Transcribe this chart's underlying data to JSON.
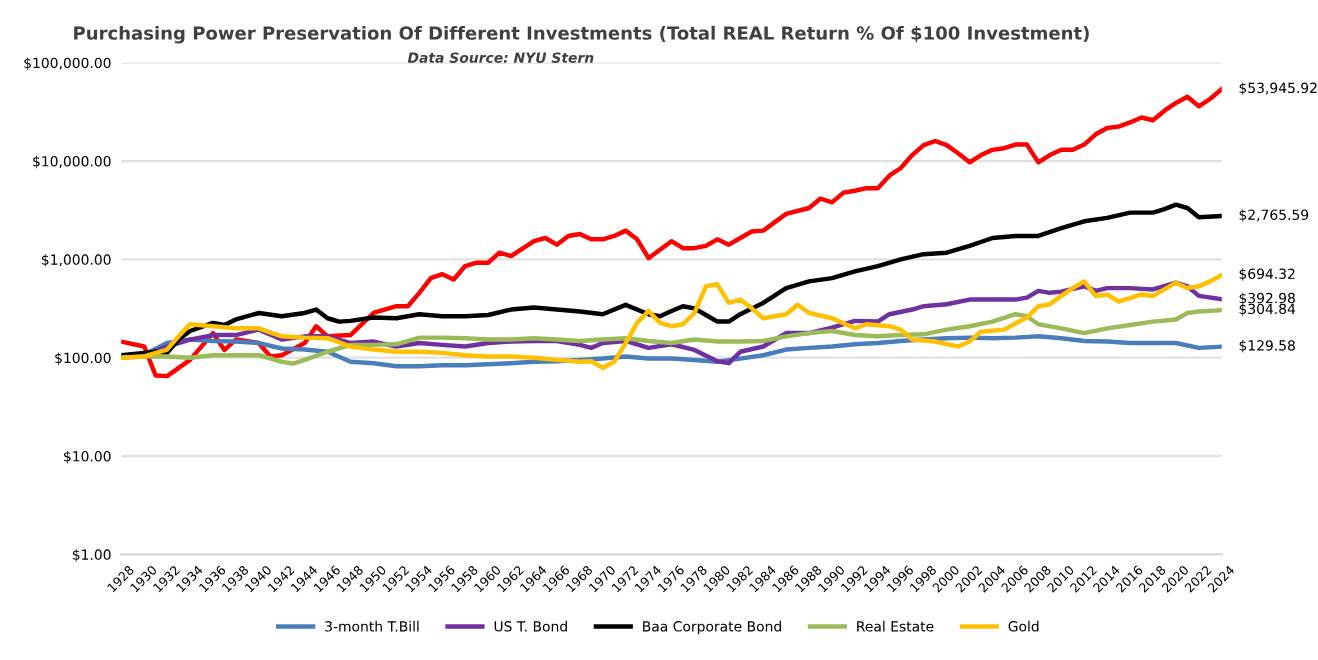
{
  "chart_data": {
    "type": "line",
    "title": "Purchasing Power Preservation Of Different Investments (Total REAL Return % Of $100 Investment)",
    "subtitle": "Data Source: NYU Stern",
    "series": [
      {
        "color": "#ff0000",
        "x": [
          1928,
          1930,
          1931,
          1932,
          1934,
          1936,
          1937,
          1938,
          1940,
          1941,
          1942,
          1944,
          1945,
          1946,
          1948,
          1950,
          1952,
          1953,
          1954,
          1955,
          1956,
          1957,
          1958,
          1959,
          1960,
          1961,
          1962,
          1964,
          1965,
          1966,
          1967,
          1968,
          1969,
          1970,
          1971,
          1972,
          1973,
          1974,
          1976,
          1977,
          1978,
          1979,
          1980,
          1981,
          1982,
          1983,
          1984,
          1986,
          1988,
          1989,
          1990,
          1991,
          1992,
          1993,
          1994,
          1995,
          1996,
          1997,
          1998,
          1999,
          2000,
          2001,
          2002,
          2003,
          2004,
          2005,
          2006,
          2007,
          2008,
          2009,
          2010,
          2011,
          2012,
          2013,
          2014,
          2015,
          2016,
          2017,
          2018,
          2019,
          2020,
          2021,
          2022,
          2023,
          2024
        ],
        "values": [
          146,
          130,
          66,
          65,
          95,
          178,
          120,
          153,
          141,
          103,
          106,
          141,
          209,
          165,
          170,
          285,
          334,
          334,
          457,
          645,
          707,
          625,
          855,
          925,
          925,
          1170,
          1080,
          1530,
          1650,
          1410,
          1730,
          1810,
          1600,
          1600,
          1730,
          1960,
          1600,
          1030,
          1530,
          1300,
          1300,
          1370,
          1600,
          1410,
          1650,
          1920,
          1960,
          2900,
          3330,
          4160,
          3800,
          4770,
          4990,
          5300,
          5300,
          7100,
          8500,
          11500,
          14500,
          16000,
          14500,
          12000,
          9700,
          11500,
          13000,
          13500,
          14700,
          14700,
          9700,
          11500,
          13000,
          13000,
          14700,
          18700,
          21700,
          22400,
          24700,
          27700,
          26000,
          32500,
          39000,
          45000,
          36000,
          43000,
          53945.92
        ],
        "value_labels": [
          null,
          null,
          null,
          null,
          null,
          null,
          null,
          null,
          null,
          null,
          null,
          null,
          null,
          null,
          null,
          null,
          null,
          null,
          null,
          null,
          null,
          null,
          null,
          null,
          null,
          null,
          null,
          null,
          null,
          null,
          null,
          null,
          null,
          null,
          null,
          null,
          null,
          null,
          null,
          null,
          null,
          null,
          null,
          null,
          null,
          null,
          null,
          null,
          null,
          null,
          null,
          null,
          null,
          null,
          null,
          null,
          null,
          null,
          null,
          null,
          null,
          null,
          null,
          null,
          null,
          null,
          null,
          null,
          null,
          null,
          null,
          null,
          null,
          null,
          null,
          null,
          null,
          null,
          null,
          null,
          null,
          null,
          null,
          null,
          "$53,945.92"
        ]
      },
      {
        "name": "3-month T.Bill",
        "color": "#4a7ebb",
        "x": [
          1928,
          1930,
          1932,
          1934,
          1936,
          1938,
          1940,
          1942,
          1944,
          1946,
          1948,
          1950,
          1952,
          1954,
          1956,
          1958,
          1960,
          1962,
          1964,
          1966,
          1968,
          1970,
          1972,
          1974,
          1976,
          1978,
          1980,
          1982,
          1984,
          1986,
          1988,
          1990,
          1992,
          1994,
          1996,
          1998,
          2000,
          2002,
          2004,
          2006,
          2008,
          2010,
          2012,
          2014,
          2016,
          2018,
          2020,
          2022,
          2024
        ],
        "values": [
          103,
          108,
          141,
          153,
          148,
          146,
          141,
          124,
          121,
          115,
          91,
          88,
          82,
          82,
          84,
          84,
          86,
          88,
          91,
          92,
          95,
          98,
          103,
          98,
          98,
          95,
          91,
          98,
          106,
          121,
          126,
          130,
          137,
          141,
          148,
          153,
          158,
          160,
          158,
          160,
          165,
          158,
          148,
          146,
          141,
          141,
          141,
          126,
          129.58
        ],
        "value_labels": [
          null,
          null,
          null,
          null,
          null,
          null,
          null,
          null,
          null,
          null,
          null,
          null,
          null,
          null,
          null,
          null,
          null,
          null,
          null,
          null,
          null,
          null,
          null,
          null,
          null,
          null,
          null,
          null,
          null,
          null,
          null,
          null,
          null,
          null,
          null,
          null,
          null,
          null,
          null,
          null,
          null,
          null,
          null,
          null,
          null,
          null,
          null,
          null,
          "$129.58"
        ]
      },
      {
        "name": "US T. Bond",
        "color": "#7030a0",
        "x": [
          1928,
          1930,
          1932,
          1934,
          1936,
          1938,
          1940,
          1942,
          1944,
          1946,
          1948,
          1950,
          1952,
          1954,
          1956,
          1958,
          1960,
          1962,
          1964,
          1966,
          1968,
          1969,
          1970,
          1972,
          1974,
          1976,
          1978,
          1980,
          1981,
          1982,
          1984,
          1986,
          1988,
          1990,
          1992,
          1994,
          1995,
          1997,
          1998,
          2000,
          2002,
          2004,
          2006,
          2007,
          2008,
          2009,
          2010,
          2012,
          2013,
          2014,
          2016,
          2018,
          2020,
          2021,
          2022,
          2024
        ],
        "values": [
          100,
          106,
          130,
          153,
          170,
          170,
          193,
          153,
          165,
          165,
          141,
          146,
          130,
          141,
          135,
          130,
          141,
          146,
          148,
          148,
          135,
          126,
          141,
          148,
          126,
          137,
          120,
          92,
          88,
          115,
          130,
          178,
          178,
          202,
          237,
          233,
          277,
          309,
          334,
          350,
          390,
          390,
          390,
          409,
          478,
          457,
          470,
          533,
          478,
          510,
          510,
          495,
          580,
          533,
          425,
          392.98
        ],
        "value_labels": [
          null,
          null,
          null,
          null,
          null,
          null,
          null,
          null,
          null,
          null,
          null,
          null,
          null,
          null,
          null,
          null,
          null,
          null,
          null,
          null,
          null,
          null,
          null,
          null,
          null,
          null,
          null,
          null,
          null,
          null,
          null,
          null,
          null,
          null,
          null,
          null,
          null,
          null,
          null,
          null,
          null,
          null,
          null,
          null,
          null,
          null,
          null,
          null,
          null,
          null,
          null,
          null,
          null,
          null,
          null,
          "$392.98"
        ]
      },
      {
        "name": "Baa Corporate Bond",
        "color": "#000000",
        "x": [
          1928,
          1930,
          1931,
          1932,
          1933,
          1934,
          1936,
          1937,
          1938,
          1940,
          1942,
          1944,
          1945,
          1946,
          1947,
          1948,
          1950,
          1952,
          1954,
          1956,
          1958,
          1960,
          1962,
          1964,
          1966,
          1968,
          1970,
          1972,
          1974,
          1975,
          1976,
          1977,
          1978,
          1979,
          1980,
          1981,
          1982,
          1984,
          1986,
          1988,
          1990,
          1992,
          1994,
          1996,
          1998,
          2000,
          2002,
          2004,
          2006,
          2008,
          2010,
          2012,
          2014,
          2016,
          2018,
          2019,
          2020,
          2021,
          2022,
          2024
        ],
        "values": [
          106,
          112,
          115,
          112,
          153,
          187,
          226,
          215,
          245,
          285,
          264,
          285,
          309,
          252,
          233,
          237,
          256,
          252,
          277,
          264,
          264,
          272,
          309,
          324,
          309,
          295,
          277,
          345,
          277,
          264,
          299,
          334,
          318,
          272,
          233,
          233,
          277,
          361,
          510,
          597,
          645,
          755,
          855,
          1000,
          1130,
          1170,
          1370,
          1650,
          1730,
          1730,
          2080,
          2440,
          2640,
          2990,
          2990,
          3240,
          3600,
          3330,
          2680,
          2765.59
        ],
        "value_labels": [
          null,
          null,
          null,
          null,
          null,
          null,
          null,
          null,
          null,
          null,
          null,
          null,
          null,
          null,
          null,
          null,
          null,
          null,
          null,
          null,
          null,
          null,
          null,
          null,
          null,
          null,
          null,
          null,
          null,
          null,
          null,
          null,
          null,
          null,
          null,
          null,
          null,
          null,
          null,
          null,
          null,
          null,
          null,
          null,
          null,
          null,
          null,
          null,
          null,
          null,
          null,
          null,
          null,
          null,
          null,
          null,
          null,
          null,
          null,
          "$2,765.59"
        ]
      },
      {
        "name": "Real Estate",
        "color": "#9bbb59",
        "x": [
          1928,
          1930,
          1932,
          1934,
          1936,
          1938,
          1940,
          1942,
          1943,
          1944,
          1946,
          1948,
          1950,
          1952,
          1954,
          1956,
          1958,
          1960,
          1962,
          1964,
          1966,
          1968,
          1970,
          1972,
          1974,
          1976,
          1978,
          1980,
          1982,
          1984,
          1986,
          1988,
          1990,
          1992,
          1994,
          1996,
          1998,
          2000,
          2002,
          2004,
          2006,
          2007,
          2008,
          2010,
          2012,
          2014,
          2016,
          2018,
          2020,
          2021,
          2022,
          2024
        ],
        "values": [
          100,
          103,
          103,
          100,
          106,
          106,
          106,
          91,
          87,
          95,
          115,
          135,
          135,
          137,
          160,
          160,
          158,
          153,
          153,
          158,
          153,
          148,
          153,
          158,
          148,
          141,
          153,
          146,
          146,
          148,
          165,
          178,
          187,
          170,
          165,
          170,
          173,
          193,
          209,
          233,
          277,
          264,
          219,
          199,
          178,
          199,
          215,
          233,
          245,
          285,
          295,
          304.84
        ],
        "value_labels": [
          null,
          null,
          null,
          null,
          null,
          null,
          null,
          null,
          null,
          null,
          null,
          null,
          null,
          null,
          null,
          null,
          null,
          null,
          null,
          null,
          null,
          null,
          null,
          null,
          null,
          null,
          null,
          null,
          null,
          null,
          null,
          null,
          null,
          null,
          null,
          null,
          null,
          null,
          null,
          null,
          null,
          null,
          null,
          null,
          null,
          null,
          null,
          null,
          null,
          null,
          null,
          "$304.84"
        ]
      },
      {
        "name": "Gold",
        "color": "#ffc000",
        "x": [
          1928,
          1930,
          1932,
          1933,
          1934,
          1936,
          1938,
          1940,
          1942,
          1944,
          1946,
          1948,
          1950,
          1952,
          1954,
          1956,
          1958,
          1960,
          1962,
          1964,
          1966,
          1968,
          1969,
          1970,
          1971,
          1972,
          1973,
          1974,
          1975,
          1976,
          1977,
          1978,
          1979,
          1980,
          1981,
          1982,
          1983,
          1984,
          1986,
          1987,
          1988,
          1990,
          1992,
          1993,
          1995,
          1996,
          1997,
          1999,
          2001,
          2002,
          2003,
          2005,
          2007,
          2008,
          2009,
          2010,
          2011,
          2012,
          2013,
          2014,
          2015,
          2016,
          2017,
          2018,
          2019,
          2020,
          2021,
          2022,
          2023,
          2024
        ],
        "values": [
          100,
          103,
          121,
          165,
          219,
          209,
          199,
          199,
          165,
          160,
          158,
          130,
          121,
          115,
          115,
          112,
          106,
          103,
          103,
          100,
          95,
          91,
          92,
          79,
          91,
          141,
          226,
          299,
          226,
          209,
          219,
          285,
          533,
          558,
          361,
          390,
          318,
          252,
          277,
          345,
          285,
          252,
          199,
          219,
          209,
          193,
          153,
          146,
          130,
          146,
          184,
          193,
          256,
          334,
          350,
          425,
          510,
          597,
          425,
          440,
          373,
          403,
          440,
          425,
          495,
          580,
          510,
          533,
          597,
          694.32
        ],
        "value_labels": [
          null,
          null,
          null,
          null,
          null,
          null,
          null,
          null,
          null,
          null,
          null,
          null,
          null,
          null,
          null,
          null,
          null,
          null,
          null,
          null,
          null,
          null,
          null,
          null,
          null,
          null,
          null,
          null,
          null,
          null,
          null,
          null,
          null,
          null,
          null,
          null,
          null,
          null,
          null,
          null,
          null,
          null,
          null,
          null,
          null,
          null,
          null,
          null,
          null,
          null,
          null,
          null,
          null,
          null,
          null,
          null,
          null,
          null,
          null,
          null,
          null,
          null,
          null,
          null,
          null,
          null,
          null,
          null,
          null,
          "$694.32"
        ]
      }
    ],
    "xlim": [
      1928,
      2024
    ],
    "xticks": [
      1928,
      1930,
      1932,
      1934,
      1936,
      1938,
      1940,
      1942,
      1944,
      1946,
      1948,
      1950,
      1952,
      1954,
      1956,
      1958,
      1960,
      1962,
      1964,
      1966,
      1968,
      1970,
      1972,
      1974,
      1976,
      1978,
      1980,
      1982,
      1984,
      1986,
      1988,
      1990,
      1992,
      1994,
      1996,
      1998,
      2000,
      2002,
      2004,
      2006,
      2008,
      2010,
      2012,
      2014,
      2016,
      2018,
      2020,
      2022,
      2024
    ],
    "log": true,
    "ylim": [
      1,
      100000
    ],
    "yticks": [
      {
        "value": 1,
        "label": "$1.00"
      },
      {
        "value": 10,
        "label": "$10.00"
      },
      {
        "value": 100,
        "label": "$100.00"
      },
      {
        "value": 1000,
        "label": "$1,000.00"
      },
      {
        "value": 10000,
        "label": "$10,000.00"
      },
      {
        "value": 100000,
        "label": "$100,000.00"
      }
    ],
    "grid": "y",
    "legend": "bottom",
    "marker": "none",
    "line_style": "solid"
  }
}
